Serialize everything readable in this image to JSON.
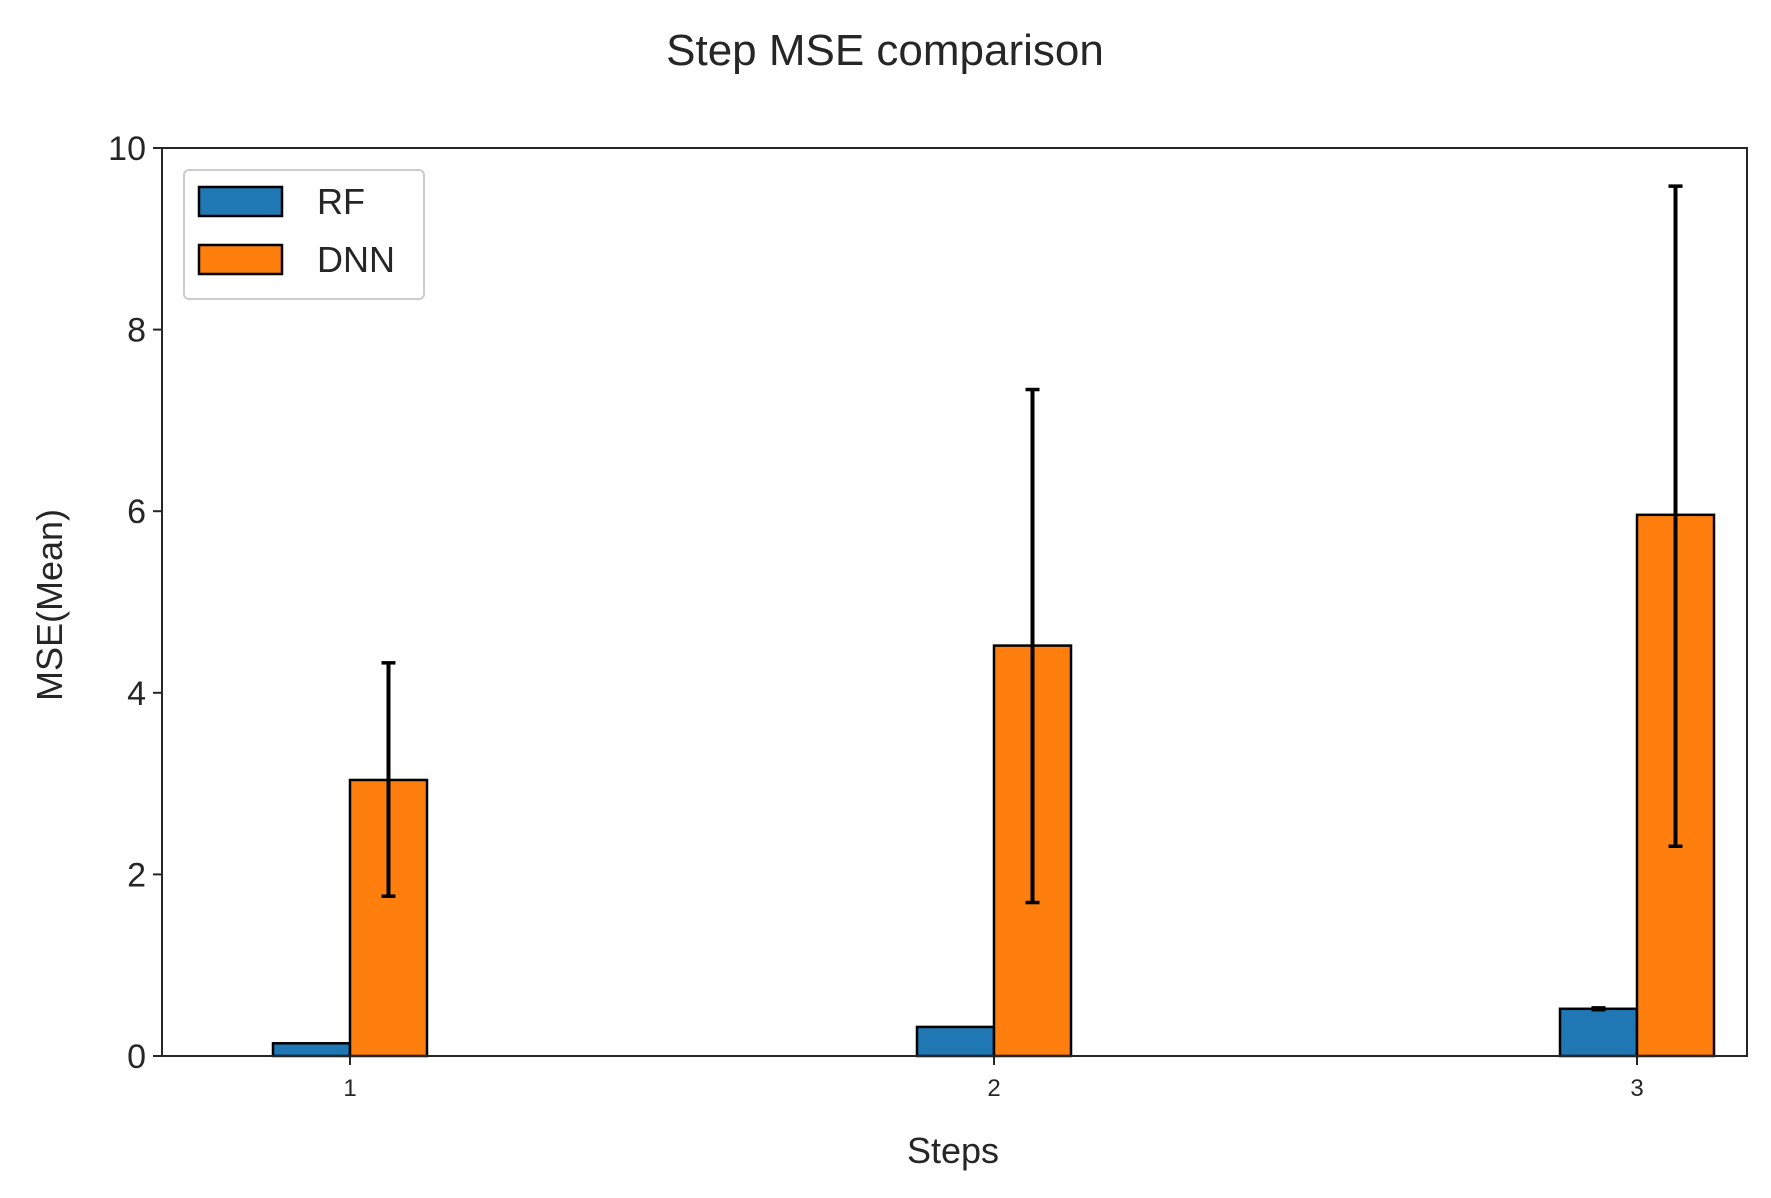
{
  "chart_data": {
    "type": "bar",
    "title": "Step MSE comparison",
    "xlabel": "Steps",
    "ylabel": "MSE(Mean)",
    "categories": [
      "1",
      "2",
      "3"
    ],
    "ylim": [
      0,
      10
    ],
    "yticks": [
      "0",
      "2",
      "4",
      "6",
      "8",
      "10"
    ],
    "grid": false,
    "legend_position": "upper-left",
    "series": [
      {
        "name": "RF",
        "color": "#1f77b4",
        "values": [
          0.14,
          0.32,
          0.52
        ],
        "error": [
          0.0,
          0.0,
          0.01
        ]
      },
      {
        "name": "DNN",
        "color": "#ff7f0e",
        "values": [
          3.04,
          4.52,
          5.96
        ],
        "error_lower": [
          1.28,
          2.83,
          3.65
        ],
        "error_upper": [
          1.29,
          2.82,
          3.62
        ]
      }
    ]
  }
}
